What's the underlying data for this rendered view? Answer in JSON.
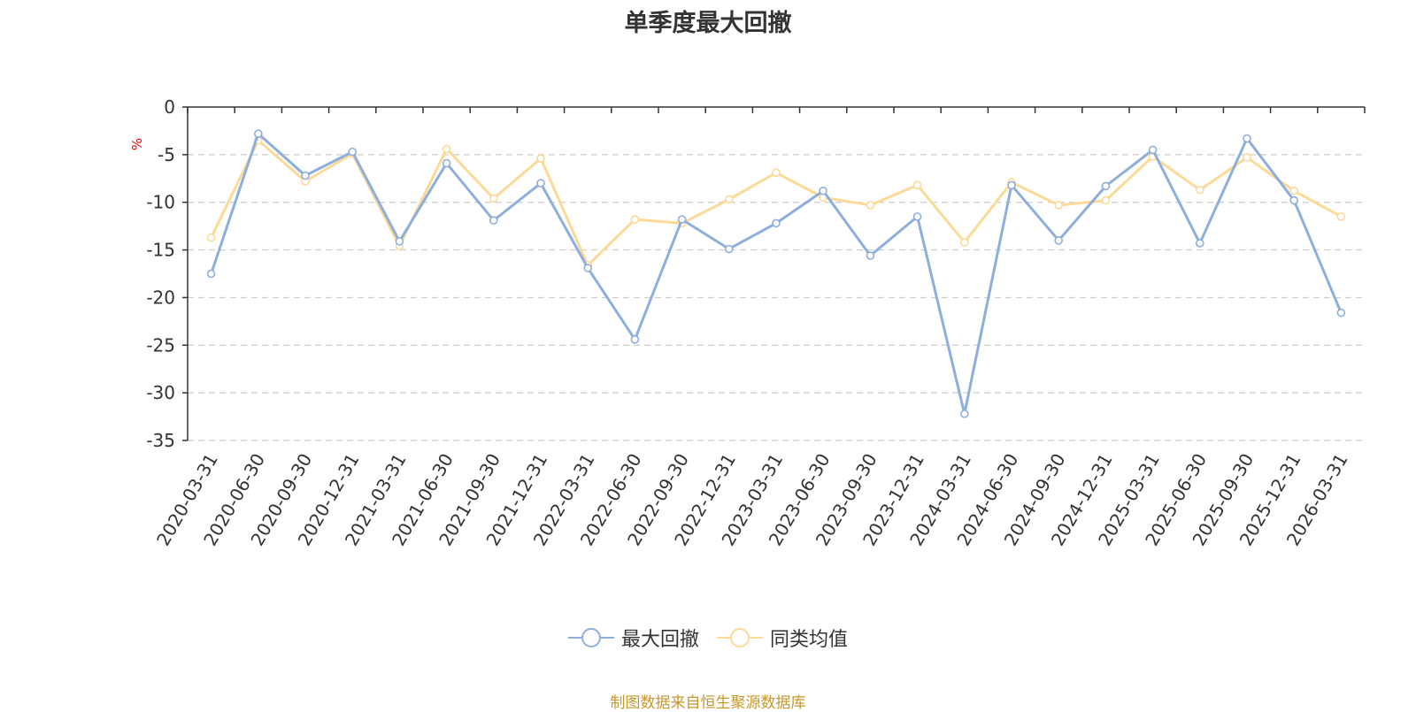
{
  "title": "单季度最大回撤",
  "source": "制图数据来自恒生聚源数据库",
  "chart_data": {
    "type": "line",
    "title": "单季度最大回撤",
    "ylabel": "%",
    "ylim": [
      -35,
      0
    ],
    "yticks": [
      0,
      -5,
      -10,
      -15,
      -20,
      -25,
      -30,
      -35
    ],
    "grid": true,
    "legend_position": "bottom",
    "categories": [
      "2020-03-31",
      "2020-06-30",
      "2020-09-30",
      "2020-12-31",
      "2021-03-31",
      "2021-06-30",
      "2021-09-30",
      "2021-12-31",
      "2022-03-31",
      "2022-06-30",
      "2022-09-30",
      "2022-12-31",
      "2023-03-31",
      "2023-06-30",
      "2023-09-30",
      "2023-12-31",
      "2024-03-31",
      "2024-06-30",
      "2024-09-30",
      "2024-12-31",
      "2025-03-31",
      "2025-06-30",
      "2025-09-30",
      "2025-12-31",
      "2026-03-31"
    ],
    "series": [
      {
        "name": "最大回撤",
        "color": "#8eaedb",
        "values": [
          -17.5,
          -2.8,
          -7.2,
          -4.7,
          -14.1,
          -5.9,
          -11.9,
          -8.0,
          -16.9,
          -24.4,
          -11.8,
          -14.9,
          -12.2,
          -8.8,
          -15.6,
          -11.5,
          -32.2,
          -8.2,
          -14.0,
          -8.3,
          -4.5,
          -14.3,
          -3.3,
          -9.8,
          -21.6
        ]
      },
      {
        "name": "同类均值",
        "color": "#fdd998",
        "values": [
          -13.7,
          -3.5,
          -7.8,
          -4.9,
          -14.6,
          -4.4,
          -9.6,
          -5.4,
          -16.6,
          -11.8,
          -12.2,
          -9.7,
          -6.9,
          -9.5,
          -10.3,
          -8.2,
          -14.2,
          -7.9,
          -10.3,
          -9.8,
          -5.2,
          -8.7,
          -5.3,
          -8.8,
          -11.5
        ]
      }
    ]
  }
}
